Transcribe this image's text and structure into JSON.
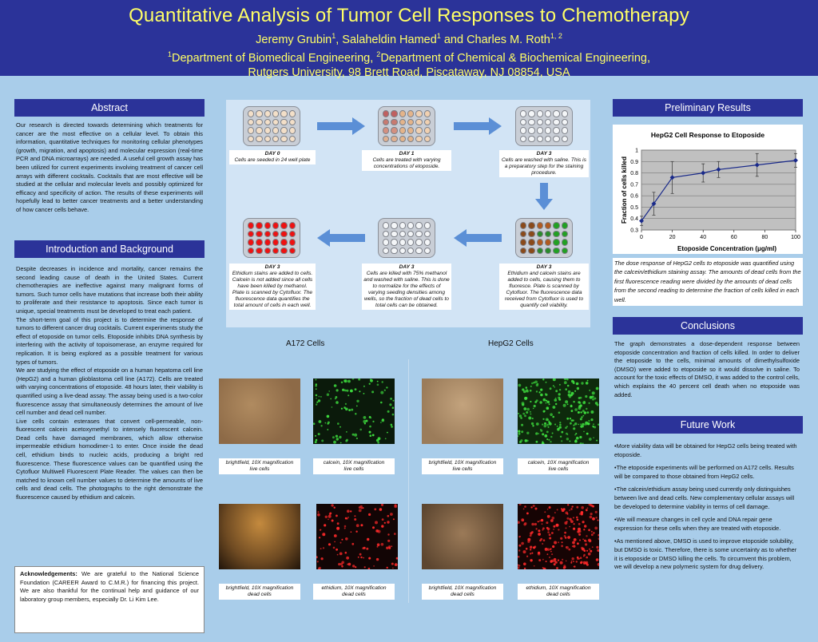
{
  "header": {
    "title": "Quantitative Analysis of Tumor Cell Responses to Chemotherapy",
    "authors_html": "Jeremy Grubin<sup>1</sup>, Salaheldin Hamed<sup>1</sup> and Charles M. Roth<sup>1, 2</sup>",
    "affiliation_html": "<sup>1</sup>Department of Biomedical Engineering, <sup>2</sup>Department of Chemical &amp; Biochemical Engineering,",
    "address": "Rutgers University, 98 Brett Road, Piscataway, NJ 08854, USA"
  },
  "abstract": {
    "heading": "Abstract",
    "text": "Our research is directed towards determining which treatments for cancer are the most effective on a cellular level. To obtain this information, quantitative techniques for monitoring cellular phenotypes (growth, migration, and apoptosis) and molecular expression (real-time PCR and DNA microarrays) are needed. A useful cell growth assay has been utilized for current experiments involving treatment of cancer cell arrays with different cocktails. Cocktails that are most effective will be studied at the cellular and molecular levels and possibly optimized for efficacy and specificity of action. The results of these experiments will hopefully lead to better cancer treatments and a better understanding of how cancer cells behave."
  },
  "intro": {
    "heading": "Introduction and Background",
    "paragraphs": [
      "Despite decreases in incidence and mortality, cancer remains the second leading cause of death in the United States. Current chemotherapies are ineffective against many malignant forms of tumors. Such tumor cells have mutations that increase both their ability to proliferate and their resistance to apoptosis. Since each tumor is unique, special treatments must be developed to treat each patient.",
      "The short-term goal of this project is to determine the response of tumors to different cancer drug cocktails. Current experiments study the effect of etoposide on tumor cells. Etoposide inhibits DNA synthesis by interfering with the activity of topoisomerase, an enzyme required for replication. It is being explored as a possible treatment for various types of tumors.",
      "We are studying the effect of etoposide on a human hepatoma cell line (HepG2) and a human glioblastoma cell line (A172). Cells are treated with varying concentrations of etoposide. 48 hours later, their viability is quantified using a live-dead assay. The assay being used is a two-color fluorescence assay that simultaneously determines the amount of live cell number and dead cell number.",
      "Live cells contain esterases that convert cell-permeable, non-fluorescent calcein acetoxymethyl to intensely fluorescent calcein. Dead cells have damaged membranes, which allow otherwise impermeable ethidium homodimer-1 to enter. Once inside the dead cell, ethidium binds to nucleic acids, producing a bright red fluorescence. These fluorescence values can be quantified using the Cytofluor Multiwell Fluorescent Plate Reader. The values can then be matched to known cell number values to determine the amounts of live cells and dead cells. The photographs to the right demonstrate the fluorescence caused by ethidium and calcein."
    ]
  },
  "ack": {
    "label": "Acknowledgements:",
    "text": " We are grateful to the National Science Foundation (CAREER Award to C.M.R.) for financing this project. We are also thankful for the continual help and guidance of our laboratory group members, especially Dr. Li Kim Lee."
  },
  "flow": {
    "steps": [
      {
        "day": "DAY 0",
        "text": "Cells are seeded in 24 well plate"
      },
      {
        "day": "DAY 1",
        "text": "Cells are treated with varying concentrations of etoposide."
      },
      {
        "day": "DAY 3",
        "text": "Cells are washed with saline. This is a preparatory step for the staining procedure."
      },
      {
        "day": "DAY 3",
        "text": "Ethidium and calcein stains are added to cells, causing them to fluoresce. Plate is scanned by Cytofluor. The fluorescence data received from Cytofluor is used to quantify cell viability."
      },
      {
        "day": "DAY 3",
        "text": "Cells are killed with 75% methanol and washed with saline. This is done to normalize for the effects of varying seeding densities among wells, so the fraction of dead cells to total cells can be obtained."
      },
      {
        "day": "DAY 3",
        "text": "Ethidium stains are added to cells. Calcein is not added since all cells have been killed by methanol. Plate is scanned by Cytofluor. The fluorescence data quantifies the total amount of cells in each well."
      }
    ]
  },
  "micrographs": {
    "a172_label": "A172 Cells",
    "hepg2_label": "HepG2 Cells",
    "captions": [
      {
        "l1": "brightfield, 10X magnification",
        "l2": "live cells"
      },
      {
        "l1": "calcein, 10X magnification",
        "l2": "live cells"
      },
      {
        "l1": "brightfield, 10X magnification",
        "l2": "live cells"
      },
      {
        "l1": "calcein, 10X magnification",
        "l2": "live cells"
      },
      {
        "l1": "brightfield, 10X magnification",
        "l2": "dead cells"
      },
      {
        "l1": "ethidium, 10X magnification",
        "l2": "dead cells"
      },
      {
        "l1": "brightfield, 10X magnification",
        "l2": "dead cells"
      },
      {
        "l1": "ethidium, 10X magnification",
        "l2": "dead cells"
      }
    ]
  },
  "results": {
    "heading": "Preliminary Results",
    "caption": "The dose response of HepG2 cells to etoposide was quantified using the calcein/ethidium staining assay. The amounts of dead cells from the first fluorescence reading were divided by the amounts of dead cells from the second reading to determine the fraction of cells killed in each well."
  },
  "chart_data": {
    "type": "line",
    "title": "HepG2 Cell Response to Etoposide",
    "xlabel": "Etoposide Concentration (μg/ml)",
    "ylabel": "Fraction of cells killed",
    "xlim": [
      0,
      100
    ],
    "ylim": [
      0.3,
      1
    ],
    "xticks": [
      0,
      20,
      40,
      60,
      80,
      100
    ],
    "yticks": [
      0.3,
      0.4,
      0.5,
      0.6,
      0.7,
      0.8,
      0.9,
      1
    ],
    "x": [
      0,
      8,
      20,
      40,
      50,
      75,
      100
    ],
    "y": [
      0.38,
      0.53,
      0.76,
      0.8,
      0.83,
      0.87,
      0.91
    ],
    "err": [
      0.04,
      0.1,
      0.14,
      0.08,
      0.07,
      0.1,
      0.06
    ],
    "grid": true
  },
  "conclusions": {
    "heading": "Conclusions",
    "text": "The graph demonstrates a dose-dependent response between etoposide concentration and fraction of cells killed. In order to deliver the etoposide to the cells, minimal amounts of dimethylsulfoxide (DMSO) were added to etoposide so it would dissolve in saline. To account for the toxic effects of DMSO, it was added to the control cells, which explains the 40 percent cell death when no etoposide was added."
  },
  "future": {
    "heading": "Future Work",
    "items": [
      "•More viability data will be obtained for HepG2 cells being treated with etoposide.",
      "•The etoposide experiments will be performed on A172 cells. Results will be compared to those obtained from HepG2 cells.",
      "•The calcein/ethidium assay being used currently only distinguishes between live and dead cells. New complementary cellular assays will be developed to determine viability in terms of cell damage.",
      "•We will measure changes in cell cycle and DNA repair gene expression for these cells when they are treated with etoposide.",
      "•As mentioned above, DMSO is used to improve etoposide solubility, but DMSO is toxic. Therefore, there is some uncertainty as to whether it is etoposide or DMSO killing the cells. To circumvent this problem, we will develop a new polymeric system for drug delivery."
    ]
  },
  "colors": {
    "header_bg": "#2b3399",
    "title": "#ffff66",
    "poster_bg": "#a9cdea",
    "marker": "#1a2a8a"
  }
}
